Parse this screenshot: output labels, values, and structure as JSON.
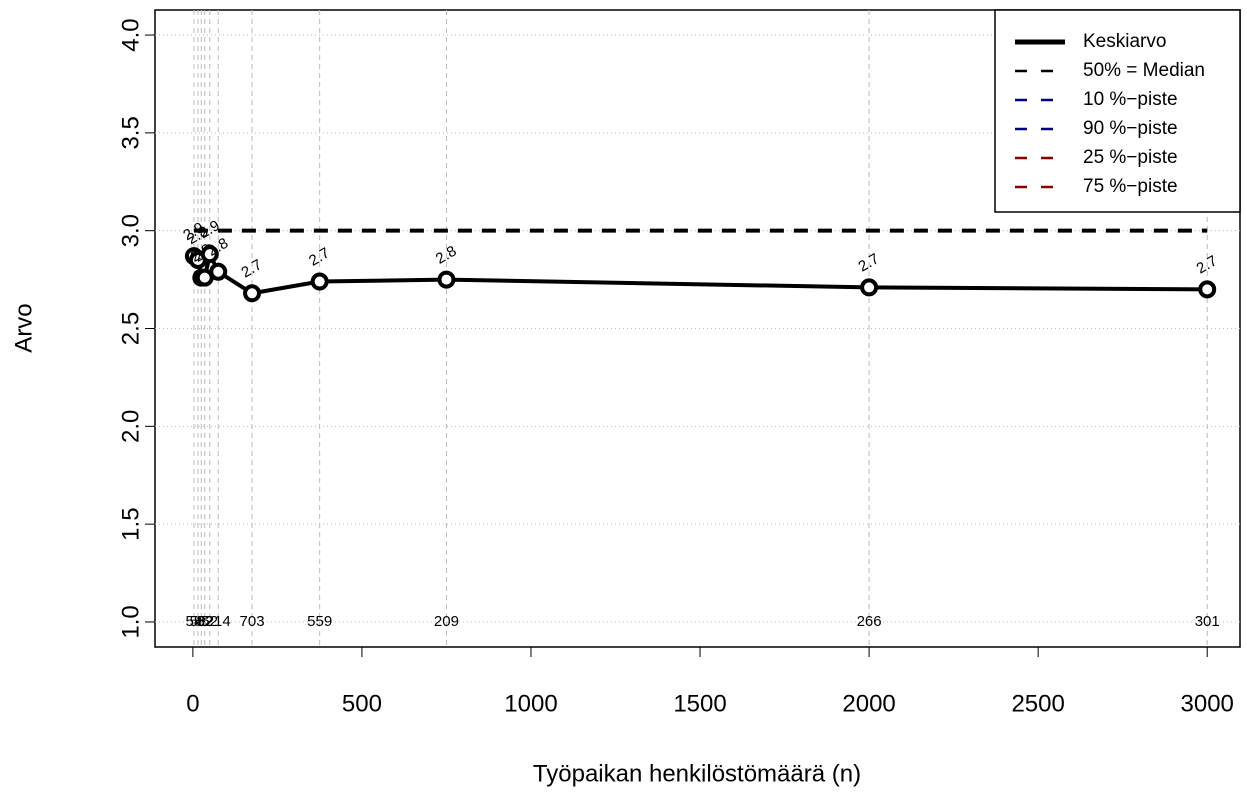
{
  "chart_data": {
    "type": "line",
    "x_label": "Työpaikan henkilöstömäärä (n)",
    "y_label": "Arvo",
    "x": [
      3,
      15,
      25,
      35,
      50,
      75,
      175,
      375,
      750,
      2000,
      3000
    ],
    "series": [
      {
        "name": "Keskiarvo",
        "color": "#000000",
        "dash": "solid",
        "values": [
          2.87,
          2.85,
          2.76,
          2.76,
          2.88,
          2.79,
          2.68,
          2.74,
          2.75,
          2.71,
          2.7
        ],
        "value_labels": [
          "2.9",
          "2.8",
          "2.8",
          "2.8",
          "2.9",
          "2.8",
          "2.7",
          "2.7",
          "2.8",
          "2.7",
          "2.7"
        ]
      },
      {
        "name": "50% = Median",
        "color": "#000000",
        "dash": "dashed",
        "values": [
          3,
          3,
          3,
          3,
          3,
          3,
          3,
          3,
          3,
          3,
          3
        ]
      }
    ],
    "legend_only": [
      {
        "name": "10 %−piste",
        "color": "#00008b"
      },
      {
        "name": "90 %−piste",
        "color": "#00008b"
      },
      {
        "name": "25 %−piste",
        "color": "#8b0000"
      },
      {
        "name": "75 %−piste",
        "color": "#8b0000"
      }
    ],
    "counts": [
      58,
      58,
      5,
      82,
      52,
      214,
      703,
      559,
      209,
      266,
      301
    ],
    "xlim": [
      -112,
      3097
    ],
    "ylim": [
      0.872,
      4.128
    ],
    "xticks": [
      0,
      500,
      1000,
      1500,
      2000,
      2500,
      3000
    ],
    "yticks": [
      {
        "value": 1,
        "label": "1.0"
      },
      {
        "value": 1.5,
        "label": "1.5"
      },
      {
        "value": 2,
        "label": "2.0"
      },
      {
        "value": 2.5,
        "label": "2.5"
      },
      {
        "value": 3,
        "label": "3.0"
      },
      {
        "value": 3.5,
        "label": "3.5"
      },
      {
        "value": 4,
        "label": "4.0"
      }
    ],
    "grid": true,
    "legend_position": "top-right"
  }
}
